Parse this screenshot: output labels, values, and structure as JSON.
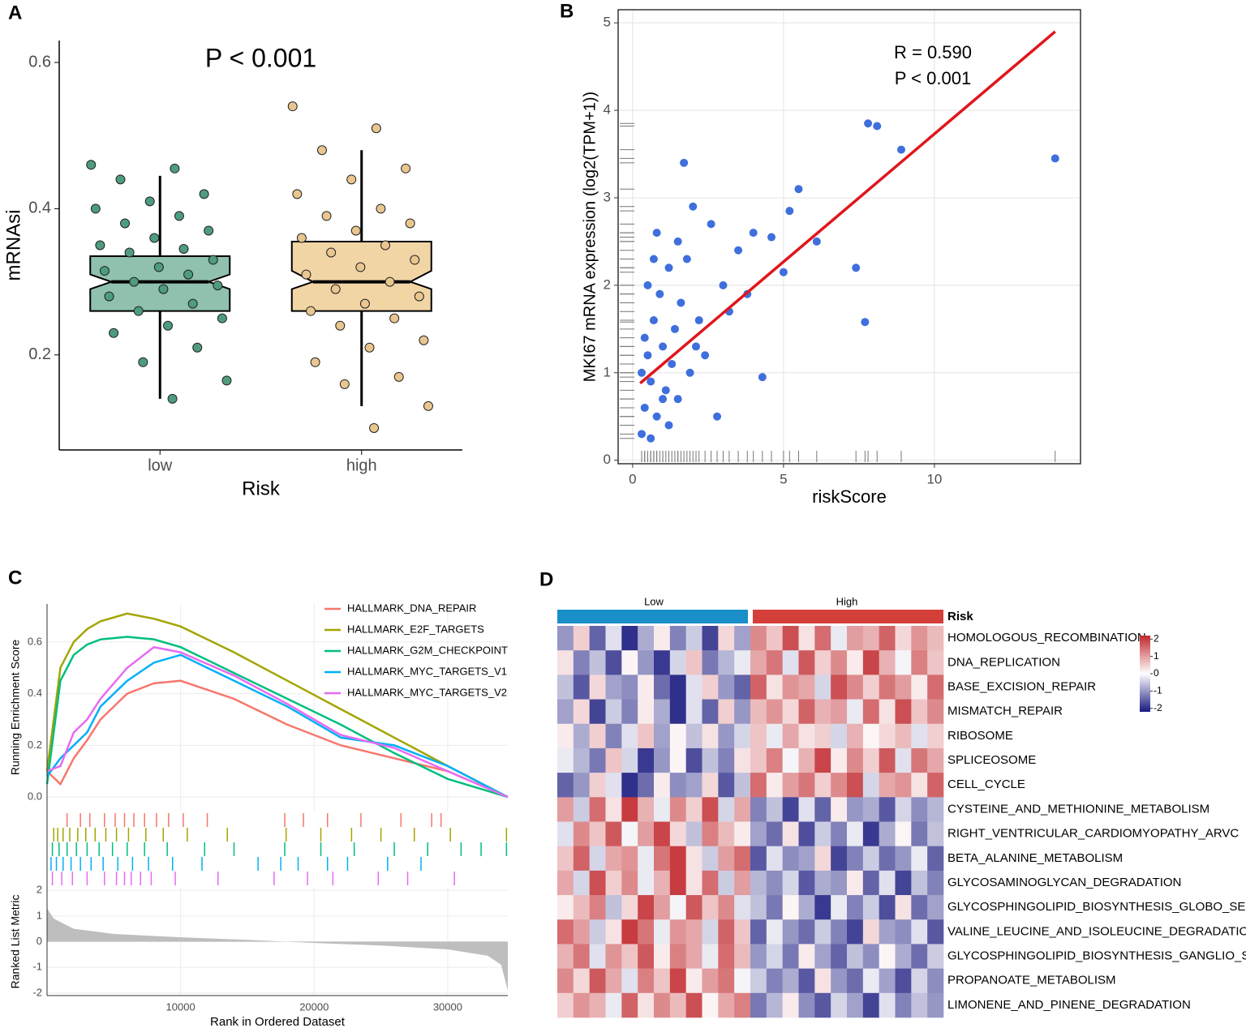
{
  "chart_data": [
    {
      "panel": "A",
      "type": "box",
      "title": "P < 0.001",
      "ylabel": "mRNAsi",
      "xlabel": "Risk",
      "categories": [
        "low",
        "high"
      ],
      "ylim": [
        0.07,
        0.63
      ],
      "yticks": [
        0.2,
        0.4,
        0.6
      ],
      "boxes": [
        {
          "min": 0.14,
          "q1": 0.26,
          "notch_lo": 0.29,
          "median": 0.3,
          "notch_hi": 0.31,
          "q3": 0.335,
          "max": 0.445
        },
        {
          "min": 0.13,
          "q1": 0.26,
          "notch_lo": 0.29,
          "median": 0.3,
          "notch_hi": 0.315,
          "q3": 0.355,
          "max": 0.48
        }
      ],
      "fills": [
        "#8fc1ae",
        "#f1d5a5"
      ],
      "point_colors": [
        "#4e9c7e",
        "#e9c68f"
      ],
      "points": [
        [
          0.46,
          0.455,
          0.44,
          0.42,
          0.41,
          0.4,
          0.39,
          0.38,
          0.37,
          0.36,
          0.35,
          0.345,
          0.34,
          0.33,
          0.32,
          0.315,
          0.31,
          0.3,
          0.295,
          0.29,
          0.28,
          0.27,
          0.26,
          0.25,
          0.24,
          0.23,
          0.21,
          0.19,
          0.165,
          0.14
        ],
        [
          0.54,
          0.51,
          0.48,
          0.455,
          0.44,
          0.42,
          0.4,
          0.39,
          0.38,
          0.37,
          0.36,
          0.35,
          0.34,
          0.33,
          0.32,
          0.31,
          0.3,
          0.29,
          0.28,
          0.27,
          0.26,
          0.25,
          0.24,
          0.22,
          0.21,
          0.19,
          0.17,
          0.16,
          0.13,
          0.1
        ]
      ]
    },
    {
      "panel": "B",
      "type": "scatter",
      "xlabel": "riskScore",
      "ylabel": "MKI67 mRNA expression (log2(TPM+1))",
      "annotations": [
        "R = 0.590",
        "P < 0.001"
      ],
      "grid": true,
      "color": "#3f6fdc",
      "xlim": [
        -0.48,
        14.84
      ],
      "ylim": [
        -0.04,
        5.15
      ],
      "xticks": [
        0,
        5,
        10
      ],
      "yticks": [
        0,
        1,
        2,
        3,
        4,
        5
      ],
      "x": [
        0.3,
        0.4,
        0.5,
        0.6,
        0.7,
        0.8,
        0.9,
        1.0,
        1.1,
        1.2,
        1.3,
        1.4,
        1.5,
        1.6,
        1.7,
        1.8,
        1.9,
        2.0,
        2.2,
        2.4,
        2.6,
        2.8,
        3.0,
        3.2,
        3.5,
        3.8,
        4.0,
        4.3,
        4.6,
        5.0,
        5.2,
        5.5,
        6.1,
        7.4,
        7.7,
        7.8,
        8.1,
        8.9,
        14.0,
        0.5,
        0.8,
        1.2,
        0.4,
        0.6,
        1.0,
        1.5,
        2.1,
        0.3,
        0.7
      ],
      "y": [
        0.3,
        0.6,
        1.2,
        0.9,
        1.6,
        0.5,
        1.9,
        1.3,
        0.8,
        2.2,
        1.1,
        1.5,
        0.7,
        1.8,
        3.4,
        2.3,
        1.0,
        2.9,
        1.6,
        1.2,
        2.7,
        0.5,
        2.0,
        1.7,
        2.4,
        1.9,
        2.6,
        0.95,
        2.55,
        2.15,
        2.85,
        3.1,
        2.5,
        2.2,
        1.58,
        3.85,
        3.82,
        3.55,
        3.45,
        2.0,
        2.6,
        0.4,
        1.4,
        0.25,
        0.7,
        2.5,
        1.3,
        1.0,
        2.3
      ],
      "fit": {
        "x": [
          0.25,
          14.0
        ],
        "y": [
          0.88,
          4.9
        ],
        "color": "#e0161b"
      }
    },
    {
      "panel": "C",
      "type": "line",
      "ylabel": "Running Enrichment Score",
      "xlabel": "Rank in Ordered Dataset",
      "xlim": [
        0,
        34500
      ],
      "xticks": [
        10000,
        20000,
        30000
      ],
      "ylim": [
        -0.053,
        0.747
      ],
      "yticks": [
        {
          "value": 0,
          "label": "0.0"
        },
        0.2,
        0.4,
        0.6
      ],
      "x": [
        0,
        1000,
        2000,
        3000,
        4000,
        6000,
        8000,
        10000,
        14000,
        18000,
        22000,
        26000,
        30000,
        34500
      ],
      "series": [
        {
          "name": "HALLMARK_DNA_REPAIR",
          "color": "#f8766d",
          "values": [
            0.1,
            0.05,
            0.15,
            0.22,
            0.3,
            0.4,
            0.44,
            0.45,
            0.38,
            0.28,
            0.2,
            0.15,
            0.1,
            0.0
          ],
          "hits": [
            1500,
            2500,
            3200,
            4300,
            5100,
            5800,
            6500,
            7300,
            8200,
            9100,
            10200,
            12000,
            17800,
            19200,
            21000,
            23500,
            26500,
            28800,
            29500
          ]
        },
        {
          "name": "HALLMARK_E2F_TARGETS",
          "color": "#a3a500",
          "values": [
            0.1,
            0.5,
            0.6,
            0.65,
            0.68,
            0.71,
            0.69,
            0.66,
            0.56,
            0.45,
            0.34,
            0.23,
            0.12,
            0.0
          ],
          "hits": [
            500,
            800,
            1200,
            1700,
            2300,
            2900,
            3600,
            4400,
            5200,
            6100,
            7400,
            8700,
            10500,
            13500,
            17900,
            20500,
            22800,
            25000,
            27500,
            30200,
            34400
          ]
        },
        {
          "name": "HALLMARK_G2M_CHECKPOINT",
          "color": "#00bf7d",
          "values": [
            0.05,
            0.45,
            0.55,
            0.59,
            0.61,
            0.62,
            0.61,
            0.58,
            0.48,
            0.38,
            0.28,
            0.17,
            0.07,
            0.0
          ],
          "hits": [
            400,
            900,
            1500,
            2200,
            3000,
            3900,
            4900,
            6000,
            7300,
            9000,
            11800,
            14000,
            17800,
            20500,
            23000,
            26000,
            28500,
            31000,
            32500,
            34400
          ]
        },
        {
          "name": "HALLMARK_MYC_TARGETS_V1",
          "color": "#00b0f6",
          "values": [
            0.08,
            0.15,
            0.2,
            0.25,
            0.35,
            0.45,
            0.52,
            0.55,
            0.45,
            0.35,
            0.23,
            0.2,
            0.12,
            0.0
          ],
          "hits": [
            300,
            700,
            1200,
            1800,
            2500,
            3300,
            4200,
            5300,
            6400,
            7600,
            9400,
            11600,
            15800,
            17500,
            18800,
            21000,
            22500,
            25500,
            28000
          ]
        },
        {
          "name": "HALLMARK_MYC_TARGETS_V2",
          "color": "#e76bf3",
          "values": [
            0.1,
            0.12,
            0.25,
            0.3,
            0.38,
            0.5,
            0.58,
            0.56,
            0.47,
            0.36,
            0.24,
            0.19,
            0.1,
            0.0
          ],
          "hits": [
            400,
            1100,
            1900,
            3000,
            4300,
            5200,
            5800,
            6300,
            7000,
            7800,
            9600,
            12800,
            17000,
            19500,
            21400,
            24800,
            27000,
            30500
          ]
        }
      ],
      "metric": {
        "ylabel": "Ranked List Metric",
        "color": "#bebebe",
        "ylim": [
          -2.1,
          2.1
        ],
        "yticks": [
          -2,
          -1,
          0,
          1,
          2
        ],
        "x": [
          0,
          500,
          2000,
          5000,
          10000,
          15000,
          20000,
          25000,
          30000,
          33000,
          34000,
          34500
        ],
        "values": [
          1.3,
          0.9,
          0.5,
          0.3,
          0.17,
          0.07,
          -0.05,
          -0.15,
          -0.3,
          -0.55,
          -0.9,
          -1.9
        ]
      }
    },
    {
      "panel": "D",
      "type": "heatmap",
      "annotation_label": "Risk",
      "groups": [
        {
          "name": "Low",
          "color": "#1a8fc9"
        },
        {
          "name": "High",
          "color": "#d43f3a"
        }
      ],
      "colors": {
        "low": "#1a1a80",
        "mid": "#ffffff",
        "high": "#c0282d"
      },
      "clim": [
        -2.2,
        2.2
      ],
      "colorbar_ticks": [
        -2,
        -1,
        0,
        1,
        2
      ],
      "rows": [
        "HOMOLOGOUS_RECOMBINATION",
        "DNA_REPLICATION",
        "BASE_EXCISION_REPAIR",
        "MISMATCH_REPAIR",
        "RIBOSOME",
        "SPLICEOSOME",
        "CELL_CYCLE",
        "CYSTEINE_AND_METHIONINE_METABOLISM",
        "RIGHT_VENTRICULAR_CARDIOMYOPATHY_ARVC",
        "BETA_ALANINE_METABOLISM",
        "GLYCOSAMINOGLYCAN_DEGRADATION",
        "GLYCOSPHINGOLIPID_BIOSYNTHESIS_GLOBO_SERIES",
        "VALINE_LEUCINE_AND_ISOLEUCINE_DEGRADATION",
        "GLYCOSPHINGOLIPID_BIOSYNTHESIS_GANGLIO_SERIES",
        "PROPANOATE_METABOLISM",
        "LIMONENE_AND_PINENE_DEGRADATION"
      ],
      "values": [
        [
          -1,
          0.5,
          -1.5,
          -0.3,
          -2,
          -0.8,
          0.2,
          -1.2,
          -0.5,
          -1.8,
          0.4,
          -0.9,
          1.2,
          0.6,
          1.8,
          0.3,
          1.5,
          -0.2,
          1.0,
          0.8,
          1.6,
          0.4,
          1.1,
          0.7
        ],
        [
          0.3,
          -1.2,
          -0.6,
          -1.7,
          0.1,
          -1.0,
          -1.9,
          -0.4,
          0.6,
          -1.3,
          -0.7,
          -0.2,
          0.9,
          1.4,
          -0.3,
          1.7,
          0.5,
          1.2,
          0.2,
          1.9,
          0.8,
          -0.1,
          1.3,
          0.6
        ],
        [
          -0.6,
          -1.6,
          0.4,
          -0.9,
          -1.1,
          0.2,
          -1.4,
          -2,
          -0.3,
          0.5,
          -1.0,
          -1.5,
          1.6,
          0.3,
          1.1,
          0.9,
          -0.4,
          1.8,
          1.2,
          0.5,
          1.4,
          1.0,
          0.2,
          1.5
        ],
        [
          -0.9,
          0.4,
          -1.8,
          -0.5,
          -1.2,
          0.2,
          -0.8,
          -2,
          -0.3,
          -1.5,
          0.5,
          -1,
          0.7,
          1.1,
          0.4,
          1.6,
          0.8,
          1.0,
          -0.2,
          1.5,
          0.3,
          1.8,
          0.6,
          1.2
        ],
        [
          0.2,
          -0.8,
          0.5,
          -1.2,
          -0.3,
          0.6,
          -0.9,
          0.1,
          -0.6,
          0.3,
          -1.0,
          -0.4,
          0.6,
          -0.2,
          0.9,
          0.3,
          0.5,
          -0.4,
          0.8,
          0.1,
          0.4,
          0.7,
          -0.3,
          0.5
        ],
        [
          -0.2,
          -0.7,
          -1.3,
          0.6,
          -0.4,
          -1.9,
          -1.0,
          0.1,
          -1.7,
          -0.6,
          -1.2,
          0.3,
          0.6,
          1.3,
          -0.1,
          0.8,
          1.9,
          0.2,
          1.2,
          0.5,
          1.7,
          -0.3,
          1.4,
          0.9
        ],
        [
          -1.5,
          -1.0,
          0.5,
          -0.3,
          -2,
          -1.4,
          0.2,
          -1.1,
          -0.9,
          0.4,
          -1.6,
          -0.6,
          1.5,
          0.2,
          1.0,
          1.4,
          0.5,
          1.2,
          1.8,
          -0.4,
          0.9,
          1.1,
          0.3,
          1.6
        ],
        [
          1,
          -0.5,
          1.5,
          0.3,
          2,
          0.8,
          -0.2,
          1.2,
          0.5,
          1.8,
          -0.4,
          0.9,
          -1.2,
          -0.6,
          -1.8,
          -0.3,
          -1.5,
          0.2,
          -1.0,
          -0.8,
          -1.6,
          -0.4,
          -1.1,
          -0.7
        ],
        [
          -0.3,
          1.2,
          0.6,
          1.7,
          -0.1,
          1.0,
          1.9,
          0.4,
          -0.6,
          1.3,
          0.7,
          0.2,
          -0.9,
          -1.4,
          0.3,
          -1.7,
          -0.5,
          -1.2,
          -0.2,
          -1.9,
          -0.8,
          0.1,
          -1.3,
          -0.6
        ],
        [
          0.6,
          1.6,
          -0.4,
          0.9,
          1.1,
          -0.2,
          1.4,
          2,
          0.3,
          -0.5,
          1.0,
          1.5,
          -1.6,
          -0.3,
          -1.1,
          -0.9,
          0.4,
          -1.8,
          -1.2,
          -0.5,
          -1.4,
          -1.0,
          -0.2,
          -1.5
        ],
        [
          0.9,
          -0.4,
          1.8,
          0.5,
          1.2,
          -0.2,
          0.8,
          2,
          0.3,
          1.5,
          -0.5,
          1,
          -0.7,
          -1.1,
          -0.4,
          -1.6,
          -0.8,
          -1.0,
          0.2,
          -1.5,
          -0.3,
          -1.8,
          -0.6,
          -1.2
        ],
        [
          0.2,
          0.7,
          1.3,
          -0.6,
          0.4,
          1.9,
          1.0,
          -0.1,
          1.7,
          0.6,
          1.2,
          -0.3,
          -0.6,
          -1.3,
          0.1,
          -0.8,
          -1.9,
          -0.2,
          -1.2,
          -0.5,
          -1.7,
          0.3,
          -1.4,
          -0.9
        ],
        [
          1.5,
          1.0,
          -0.5,
          0.3,
          2,
          1.4,
          -0.2,
          1.1,
          0.9,
          -0.4,
          1.6,
          0.6,
          -1.5,
          -0.2,
          -1.0,
          -1.4,
          -0.5,
          -1.2,
          -1.8,
          0.4,
          -0.9,
          -1.1,
          -0.3,
          -1.6
        ],
        [
          0.8,
          1.4,
          -0.3,
          1.1,
          0.6,
          1.7,
          0.2,
          1.3,
          0.9,
          -0.2,
          1.5,
          0.7,
          -1.0,
          -0.4,
          -1.3,
          0.2,
          -0.9,
          -1.5,
          -0.6,
          -1.1,
          0.1,
          -0.8,
          -1.4,
          -0.5
        ],
        [
          1.2,
          0.4,
          1.7,
          0.9,
          -0.3,
          1.3,
          0.6,
          1.9,
          0.2,
          1.0,
          1.4,
          -0.1,
          -0.5,
          -1.2,
          -0.8,
          -1.6,
          0.3,
          -1.0,
          -1.4,
          -0.2,
          -0.9,
          -1.7,
          -0.4,
          -1.1
        ],
        [
          0.5,
          1.1,
          0.8,
          -0.2,
          1.6,
          0.3,
          1.2,
          0.7,
          1.8,
          0.1,
          0.9,
          1.3,
          -1.3,
          -0.7,
          0.2,
          -1.1,
          -1.6,
          -0.4,
          -0.9,
          -1.8,
          -0.3,
          -1.2,
          -0.6,
          -1.0
        ]
      ]
    }
  ]
}
